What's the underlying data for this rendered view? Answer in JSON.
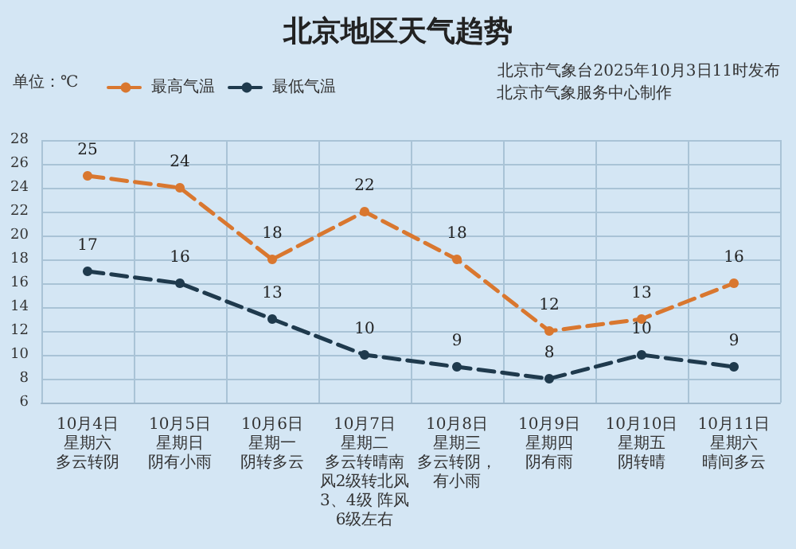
{
  "chart_data": {
    "type": "line",
    "title": "北京地区天气趋势",
    "annotations": [
      "单位：℃",
      "北京市气象台2025年10月3日11时发布",
      "北京市气象服务中心制作"
    ],
    "categories": [
      "10月4日星期六多云转阴",
      "10月5日星期日阴有小雨",
      "10月6日星期一阴转多云",
      "10月7日星期二多云转晴南风2级转北风3、4级 阵风6级左右",
      "10月8日星期三多云转阴，有小雨",
      "10月9日星期四阴有雨",
      "10月10日星期五阴转晴",
      "10月11日星期六晴间多云"
    ],
    "series": [
      {
        "name": "最高气温",
        "color": "#d9772f",
        "values": [
          25,
          24,
          18,
          22,
          18,
          12,
          13,
          16
        ]
      },
      {
        "name": "最低气温",
        "color": "#1f3a4d",
        "values": [
          17,
          16,
          13,
          10,
          9,
          8,
          10,
          9
        ]
      }
    ],
    "ylim": [
      6,
      28
    ],
    "yticks": [
      6,
      8,
      10,
      12,
      14,
      16,
      18,
      20,
      22,
      24,
      26,
      28
    ],
    "grid": true,
    "legend": "top left",
    "marker": "circle",
    "line_style": "dashed",
    "data_labels": true
  }
}
